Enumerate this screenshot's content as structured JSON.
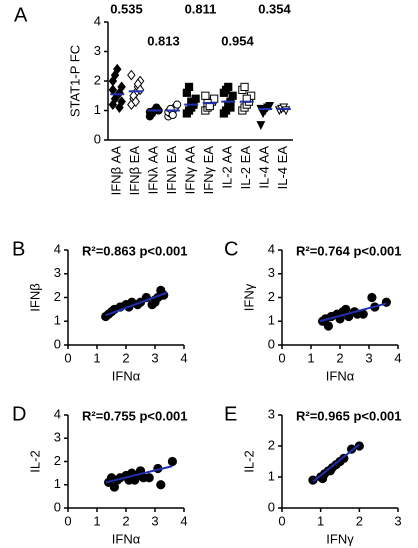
{
  "chart_data": [
    {
      "type": "strip",
      "panel_label": "A",
      "ylabel": "STAT1-P FC",
      "categories": [
        "IFNβ AA",
        "IFNβ EA",
        "IFNλ AA",
        "IFNλ EA",
        "IFNγ AA",
        "IFNγ EA",
        "IL-2 AA",
        "IL-2 EA",
        "IL-4 AA",
        "IL-4 EA"
      ],
      "markers": [
        "diamond",
        "diamond",
        "circle",
        "circle",
        "square",
        "square",
        "square",
        "square",
        "triangle",
        "triangle"
      ],
      "filled": [
        true,
        false,
        true,
        false,
        true,
        false,
        true,
        false,
        true,
        false
      ],
      "points": [
        [
          1.2,
          1.4,
          1.5,
          1.6,
          1.8,
          2.0,
          2.2,
          2.4,
          1.1,
          1.3,
          1.7
        ],
        [
          1.2,
          1.4,
          1.6,
          1.8,
          2.0,
          2.2,
          1.5,
          1.3,
          1.9,
          1.7
        ],
        [
          0.8,
          0.9,
          1.0,
          1.1,
          1.0,
          0.95
        ],
        [
          0.8,
          0.9,
          1.0,
          1.1,
          1.2,
          0.95,
          1.05,
          0.85
        ],
        [
          0.9,
          1.0,
          1.1,
          1.2,
          1.4,
          1.6,
          1.8,
          1.3,
          1.2
        ],
        [
          1.0,
          1.1,
          1.2,
          1.3,
          1.4,
          1.5,
          1.25,
          1.15
        ],
        [
          0.9,
          1.0,
          1.2,
          1.3,
          1.5,
          1.6,
          1.7,
          1.8,
          1.1
        ],
        [
          1.0,
          1.1,
          1.2,
          1.3,
          1.5,
          1.7,
          1.8,
          1.4
        ],
        [
          0.5,
          0.9,
          1.0,
          1.1,
          1.15,
          1.05
        ],
        [
          1.0,
          1.05,
          1.1,
          1.0
        ]
      ],
      "medians": [
        1.55,
        1.65,
        1.0,
        1.0,
        1.2,
        1.25,
        1.3,
        1.3,
        1.05,
        1.05
      ],
      "median_color": "#1f2fb0",
      "p_values": [
        0.535,
        0.813,
        0.811,
        0.954,
        0.354
      ],
      "ylim": [
        0,
        4
      ],
      "yticks": [
        0,
        1,
        2,
        3,
        4
      ]
    },
    {
      "type": "scatter",
      "panel_label": "B",
      "annotation": "R²=0.863 p<0.001",
      "xlabel": "IFNα",
      "ylabel": "IFNβ",
      "x": [
        1.3,
        1.4,
        1.5,
        1.8,
        2.0,
        2.1,
        2.2,
        2.5,
        2.7,
        2.9,
        3.0,
        3.1,
        3.2,
        3.3,
        1.6,
        2.4,
        3.0
      ],
      "y": [
        1.2,
        1.3,
        1.4,
        1.6,
        1.7,
        1.6,
        1.8,
        1.8,
        2.0,
        1.7,
        1.8,
        2.0,
        2.3,
        2.1,
        1.5,
        1.7,
        1.9
      ],
      "fit": {
        "x": [
          1.3,
          3.4
        ],
        "y": [
          1.25,
          2.2
        ]
      },
      "fit_color": "#1f2fb0",
      "xlim": [
        0,
        4
      ],
      "xticks": [
        0,
        1,
        2,
        3,
        4
      ],
      "ylim": [
        0,
        4
      ],
      "yticks": [
        0,
        1,
        2,
        3,
        4
      ]
    },
    {
      "type": "scatter",
      "panel_label": "C",
      "annotation": "R²=0.764 p<0.001",
      "xlabel": "IFNα",
      "ylabel": "IFNγ",
      "x": [
        1.4,
        1.6,
        1.7,
        1.9,
        2.0,
        2.1,
        2.2,
        2.3,
        2.5,
        2.8,
        3.1,
        3.2,
        3.6,
        1.5,
        2.6
      ],
      "y": [
        1.0,
        0.8,
        1.2,
        1.3,
        1.1,
        1.4,
        1.5,
        1.2,
        1.4,
        1.3,
        2.0,
        1.6,
        1.8,
        1.1,
        1.3
      ],
      "fit": {
        "x": [
          1.3,
          3.6
        ],
        "y": [
          1.0,
          1.75
        ]
      },
      "fit_color": "#1f2fb0",
      "xlim": [
        0,
        4
      ],
      "xticks": [
        0,
        1,
        2,
        3,
        4
      ],
      "ylim": [
        0,
        4
      ],
      "yticks": [
        0,
        1,
        2,
        3,
        4
      ]
    },
    {
      "type": "scatter",
      "panel_label": "D",
      "annotation": "R²=0.755 p<0.001",
      "xlabel": "IFNα",
      "ylabel": "IL-2",
      "x": [
        1.4,
        1.5,
        1.6,
        1.8,
        2.0,
        2.1,
        2.2,
        2.3,
        2.5,
        2.6,
        2.8,
        3.1,
        3.2,
        3.6,
        1.7,
        2.4
      ],
      "y": [
        1.1,
        1.3,
        0.9,
        1.3,
        1.4,
        1.2,
        1.5,
        1.2,
        1.6,
        1.3,
        1.3,
        1.7,
        1.0,
        2.0,
        1.2,
        1.4
      ],
      "fit": {
        "x": [
          1.3,
          3.6
        ],
        "y": [
          1.1,
          1.8
        ]
      },
      "fit_color": "#1f2fb0",
      "xlim": [
        0,
        4
      ],
      "xticks": [
        0,
        1,
        2,
        3,
        4
      ],
      "ylim": [
        0,
        4
      ],
      "yticks": [
        0,
        1,
        2,
        3,
        4
      ]
    },
    {
      "type": "scatter",
      "panel_label": "E",
      "annotation": "R²=0.965 p<0.001",
      "xlabel": "IFNγ",
      "ylabel": "IL-2",
      "x": [
        0.8,
        1.0,
        1.1,
        1.2,
        1.3,
        1.4,
        1.5,
        1.6,
        1.8,
        2.0,
        1.05,
        1.25
      ],
      "y": [
        0.9,
        1.0,
        1.1,
        1.2,
        1.3,
        1.4,
        1.5,
        1.6,
        1.9,
        2.0,
        0.95,
        1.2
      ],
      "fit": {
        "x": [
          0.8,
          2.0
        ],
        "y": [
          0.85,
          2.05
        ]
      },
      "fit_color": "#1f2fb0",
      "xlim": [
        0,
        3
      ],
      "xticks": [
        0,
        1,
        2,
        3
      ],
      "ylim": [
        0,
        3
      ],
      "yticks": [
        0,
        1,
        2,
        3
      ]
    }
  ]
}
